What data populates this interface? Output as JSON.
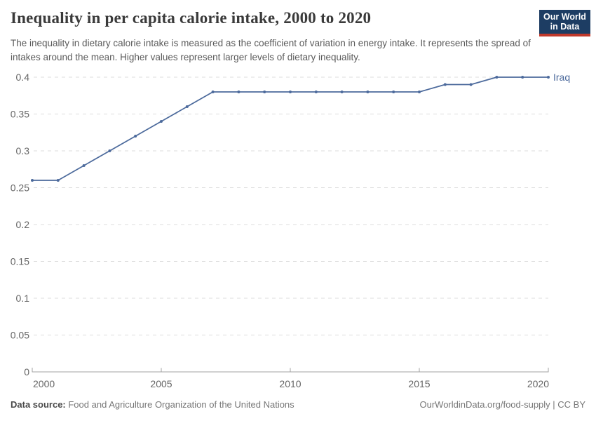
{
  "header": {
    "title": "Inequality in per capita calorie intake, 2000 to 2020",
    "subtitle": "The inequality in dietary calorie intake is measured as the coefficient of variation in energy intake. It represents the spread of intakes around the mean. Higher values represent larger levels of dietary inequality.",
    "logo": {
      "line1": "Our World",
      "line2": "in Data"
    }
  },
  "chart_data": {
    "type": "line",
    "title": "Inequality in per capita calorie intake, 2000 to 2020",
    "x": [
      2000,
      2001,
      2002,
      2003,
      2004,
      2005,
      2006,
      2007,
      2008,
      2009,
      2010,
      2011,
      2012,
      2013,
      2014,
      2015,
      2016,
      2017,
      2018,
      2019,
      2020
    ],
    "series": [
      {
        "name": "Iraq",
        "values": [
          0.26,
          0.26,
          0.28,
          0.3,
          0.32,
          0.34,
          0.36,
          0.38,
          0.38,
          0.38,
          0.38,
          0.38,
          0.38,
          0.38,
          0.38,
          0.38,
          0.39,
          0.39,
          0.4,
          0.4,
          0.4
        ]
      }
    ],
    "xlabel": "",
    "ylabel": "",
    "xlim": [
      2000,
      2020
    ],
    "ylim": [
      0,
      0.4
    ],
    "x_ticks": [
      2000,
      2005,
      2010,
      2015,
      2020
    ],
    "y_ticks": [
      0,
      0.05,
      0.1,
      0.15,
      0.2,
      0.25,
      0.3,
      0.35,
      0.4
    ],
    "grid": "horizontal-dashed",
    "legend_position": "end-of-line-label",
    "line_color": "#4c6a9c",
    "axis_color": "#a3a3a3",
    "gridline_color": "#dcdcdc",
    "tick_label_color": "#666666"
  },
  "footer": {
    "source_label": "Data source:",
    "source_text": " Food and Agriculture Organization of the United Nations",
    "credit": "OurWorldinData.org/food-supply | CC BY"
  }
}
